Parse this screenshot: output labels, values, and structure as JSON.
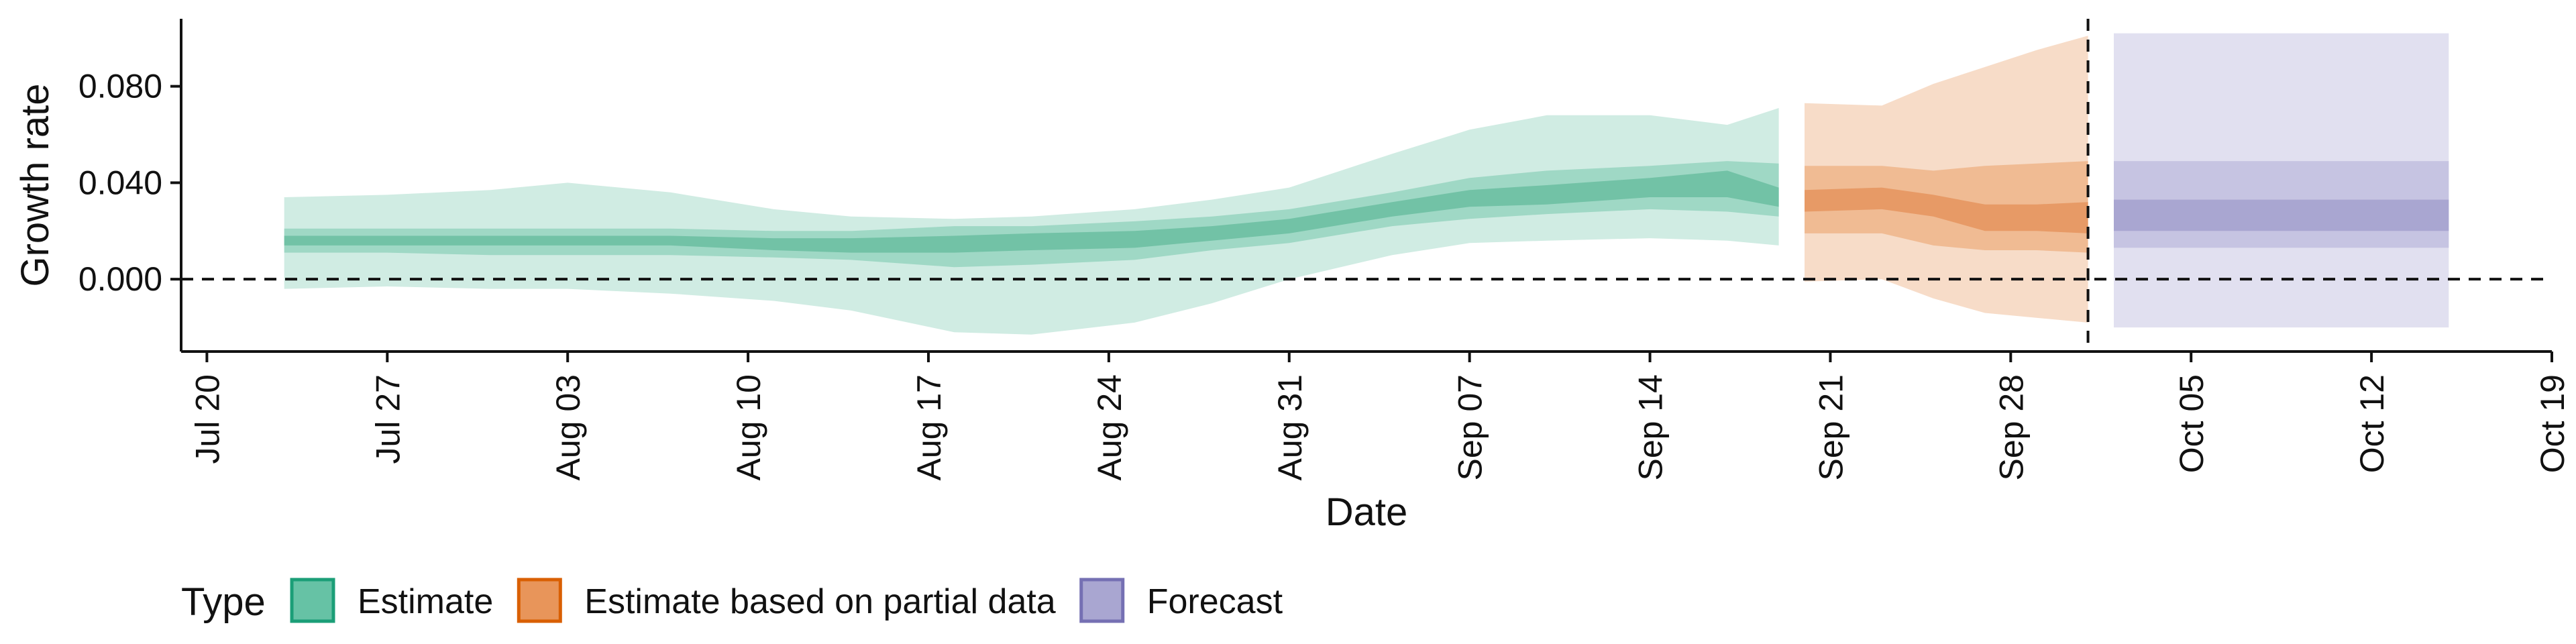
{
  "chart_data": {
    "type": "area",
    "xlabel": "Date",
    "ylabel": "Growth rate",
    "x_range": [
      "2020-07-19",
      "2020-10-19"
    ],
    "ylim": [
      -0.03,
      0.108
    ],
    "x_ticks": [
      {
        "date": "2020-07-20",
        "label": "Jul 20"
      },
      {
        "date": "2020-07-27",
        "label": "Jul 27"
      },
      {
        "date": "2020-08-03",
        "label": "Aug 03"
      },
      {
        "date": "2020-08-10",
        "label": "Aug 10"
      },
      {
        "date": "2020-08-17",
        "label": "Aug 17"
      },
      {
        "date": "2020-08-24",
        "label": "Aug 24"
      },
      {
        "date": "2020-08-31",
        "label": "Aug 31"
      },
      {
        "date": "2020-09-07",
        "label": "Sep 07"
      },
      {
        "date": "2020-09-14",
        "label": "Sep 14"
      },
      {
        "date": "2020-09-21",
        "label": "Sep 21"
      },
      {
        "date": "2020-09-28",
        "label": "Sep 28"
      },
      {
        "date": "2020-10-05",
        "label": "Oct 05"
      },
      {
        "date": "2020-10-12",
        "label": "Oct 12"
      },
      {
        "date": "2020-10-19",
        "label": "Oct 19"
      }
    ],
    "y_ticks": [
      {
        "value": 0.0,
        "label": "0.000"
      },
      {
        "value": 0.04,
        "label": "0.040"
      },
      {
        "value": 0.08,
        "label": "0.080"
      }
    ],
    "hlines": [
      0
    ],
    "vlines": [
      "2020-10-01"
    ],
    "grid": false,
    "legend": {
      "title": "Type",
      "position": "bottom",
      "items": [
        {
          "label": "Estimate",
          "fill": "#66c2a5",
          "stroke": "#1b9e77"
        },
        {
          "label": "Estimate based on partial data",
          "fill": "#e8955a",
          "stroke": "#d95f02"
        },
        {
          "label": "Forecast",
          "fill": "#a9a6d1",
          "stroke": "#7570b3"
        }
      ]
    },
    "series": [
      {
        "type": "Estimate",
        "colors": {
          "outer": "#d0ece3",
          "mid": "#9fd8c5",
          "inner": "#72c2a6"
        },
        "points": [
          {
            "date": "2020-07-23",
            "lo90": -0.004,
            "hi90": 0.034,
            "lo50": 0.011,
            "hi50": 0.021,
            "lo20": 0.014,
            "hi20": 0.018
          },
          {
            "date": "2020-07-27",
            "lo90": -0.003,
            "hi90": 0.035,
            "lo50": 0.011,
            "hi50": 0.021,
            "lo20": 0.014,
            "hi20": 0.018
          },
          {
            "date": "2020-07-31",
            "lo90": -0.004,
            "hi90": 0.037,
            "lo50": 0.01,
            "hi50": 0.021,
            "lo20": 0.014,
            "hi20": 0.018
          },
          {
            "date": "2020-08-03",
            "lo90": -0.004,
            "hi90": 0.04,
            "lo50": 0.01,
            "hi50": 0.021,
            "lo20": 0.014,
            "hi20": 0.018
          },
          {
            "date": "2020-08-07",
            "lo90": -0.006,
            "hi90": 0.036,
            "lo50": 0.01,
            "hi50": 0.021,
            "lo20": 0.014,
            "hi20": 0.018
          },
          {
            "date": "2020-08-11",
            "lo90": -0.009,
            "hi90": 0.029,
            "lo50": 0.009,
            "hi50": 0.02,
            "lo20": 0.012,
            "hi20": 0.017
          },
          {
            "date": "2020-08-14",
            "lo90": -0.013,
            "hi90": 0.026,
            "lo50": 0.008,
            "hi50": 0.02,
            "lo20": 0.011,
            "hi20": 0.017
          },
          {
            "date": "2020-08-18",
            "lo90": -0.022,
            "hi90": 0.025,
            "lo50": 0.005,
            "hi50": 0.022,
            "lo20": 0.011,
            "hi20": 0.018
          },
          {
            "date": "2020-08-21",
            "lo90": -0.023,
            "hi90": 0.026,
            "lo50": 0.006,
            "hi50": 0.022,
            "lo20": 0.012,
            "hi20": 0.019
          },
          {
            "date": "2020-08-25",
            "lo90": -0.018,
            "hi90": 0.029,
            "lo50": 0.008,
            "hi50": 0.024,
            "lo20": 0.013,
            "hi20": 0.02
          },
          {
            "date": "2020-08-28",
            "lo90": -0.01,
            "hi90": 0.033,
            "lo50": 0.012,
            "hi50": 0.026,
            "lo20": 0.016,
            "hi20": 0.022
          },
          {
            "date": "2020-08-31",
            "lo90": 0.0,
            "hi90": 0.038,
            "lo50": 0.015,
            "hi50": 0.029,
            "lo20": 0.019,
            "hi20": 0.025
          },
          {
            "date": "2020-09-04",
            "lo90": 0.01,
            "hi90": 0.052,
            "lo50": 0.022,
            "hi50": 0.036,
            "lo20": 0.026,
            "hi20": 0.032
          },
          {
            "date": "2020-09-07",
            "lo90": 0.015,
            "hi90": 0.062,
            "lo50": 0.025,
            "hi50": 0.042,
            "lo20": 0.03,
            "hi20": 0.037
          },
          {
            "date": "2020-09-10",
            "lo90": 0.016,
            "hi90": 0.068,
            "lo50": 0.027,
            "hi50": 0.045,
            "lo20": 0.031,
            "hi20": 0.039
          },
          {
            "date": "2020-09-14",
            "lo90": 0.017,
            "hi90": 0.068,
            "lo50": 0.029,
            "hi50": 0.047,
            "lo20": 0.034,
            "hi20": 0.042
          },
          {
            "date": "2020-09-17",
            "lo90": 0.016,
            "hi90": 0.064,
            "lo50": 0.028,
            "hi50": 0.049,
            "lo20": 0.034,
            "hi20": 0.045
          },
          {
            "date": "2020-09-19",
            "lo90": 0.014,
            "hi90": 0.071,
            "lo50": 0.026,
            "hi50": 0.048,
            "lo20": 0.03,
            "hi20": 0.038
          }
        ]
      },
      {
        "type": "Estimate based on partial data",
        "colors": {
          "outer": "#f7dcc8",
          "mid": "#f0bb93",
          "inner": "#e79a66"
        },
        "points": [
          {
            "date": "2020-09-20",
            "lo90": -0.001,
            "hi90": 0.073,
            "lo50": 0.019,
            "hi50": 0.047,
            "lo20": 0.028,
            "hi20": 0.037
          },
          {
            "date": "2020-09-23",
            "lo90": 0.0,
            "hi90": 0.072,
            "lo50": 0.019,
            "hi50": 0.047,
            "lo20": 0.029,
            "hi20": 0.038
          },
          {
            "date": "2020-09-25",
            "lo90": -0.008,
            "hi90": 0.081,
            "lo50": 0.014,
            "hi50": 0.045,
            "lo20": 0.026,
            "hi20": 0.035
          },
          {
            "date": "2020-09-27",
            "lo90": -0.014,
            "hi90": 0.088,
            "lo50": 0.012,
            "hi50": 0.047,
            "lo20": 0.02,
            "hi20": 0.031
          },
          {
            "date": "2020-09-29",
            "lo90": -0.016,
            "hi90": 0.095,
            "lo50": 0.012,
            "hi50": 0.048,
            "lo20": 0.02,
            "hi20": 0.031
          },
          {
            "date": "2020-10-01",
            "lo90": -0.018,
            "hi90": 0.101,
            "lo50": 0.011,
            "hi50": 0.049,
            "lo20": 0.019,
            "hi20": 0.032
          }
        ]
      },
      {
        "type": "Forecast",
        "colors": {
          "outer": "#e1e0f0",
          "mid": "#c6c4e2",
          "inner": "#a9a6d1"
        },
        "points": [
          {
            "date": "2020-10-02",
            "lo90": -0.02,
            "hi90": 0.102,
            "lo50": 0.013,
            "hi50": 0.049,
            "lo20": 0.02,
            "hi20": 0.033
          },
          {
            "date": "2020-10-15",
            "lo90": -0.02,
            "hi90": 0.102,
            "lo50": 0.013,
            "hi50": 0.049,
            "lo20": 0.02,
            "hi20": 0.033
          }
        ]
      }
    ]
  }
}
